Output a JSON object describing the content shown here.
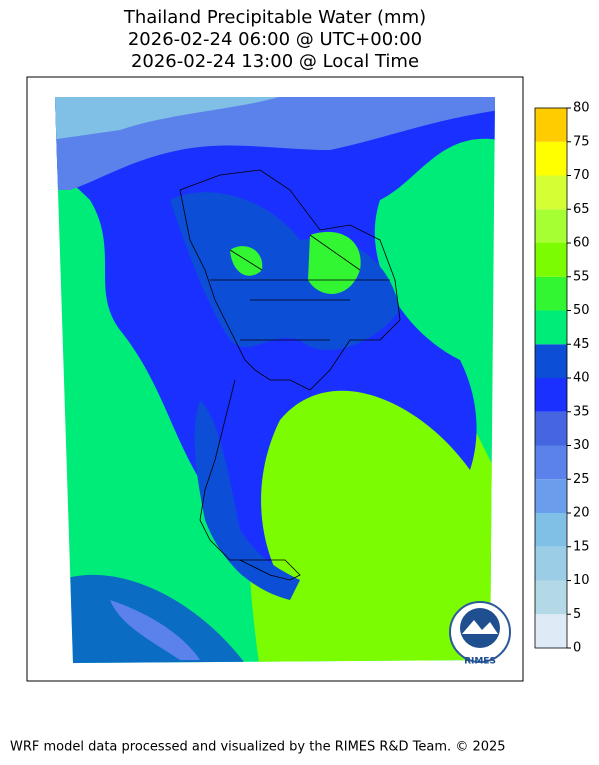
{
  "title": [
    "Thailand Precipitable Water (mm)",
    "2026-02-24 06:00 @ UTC+00:00",
    "2026-02-24 13:00 @ Local Time"
  ],
  "colorbar": {
    "levels": [
      0,
      5,
      10,
      15,
      20,
      25,
      30,
      35,
      40,
      45,
      50,
      55,
      60,
      65,
      70,
      75,
      80
    ],
    "colors": [
      "#deebf7",
      "#b4d9e6",
      "#9ccde6",
      "#80bfe6",
      "#6a9eec",
      "#5a82ea",
      "#4566e0",
      "#1a30ff",
      "#0d4ed6",
      "#00ec78",
      "#33f633",
      "#7cfc00",
      "#a6ff33",
      "#d4ff33",
      "#ffff00",
      "#ffcc00"
    ]
  },
  "logo": "RIMES",
  "footer": "WRF model data processed and visualized by the RIMES R&D Team. © 2025"
}
